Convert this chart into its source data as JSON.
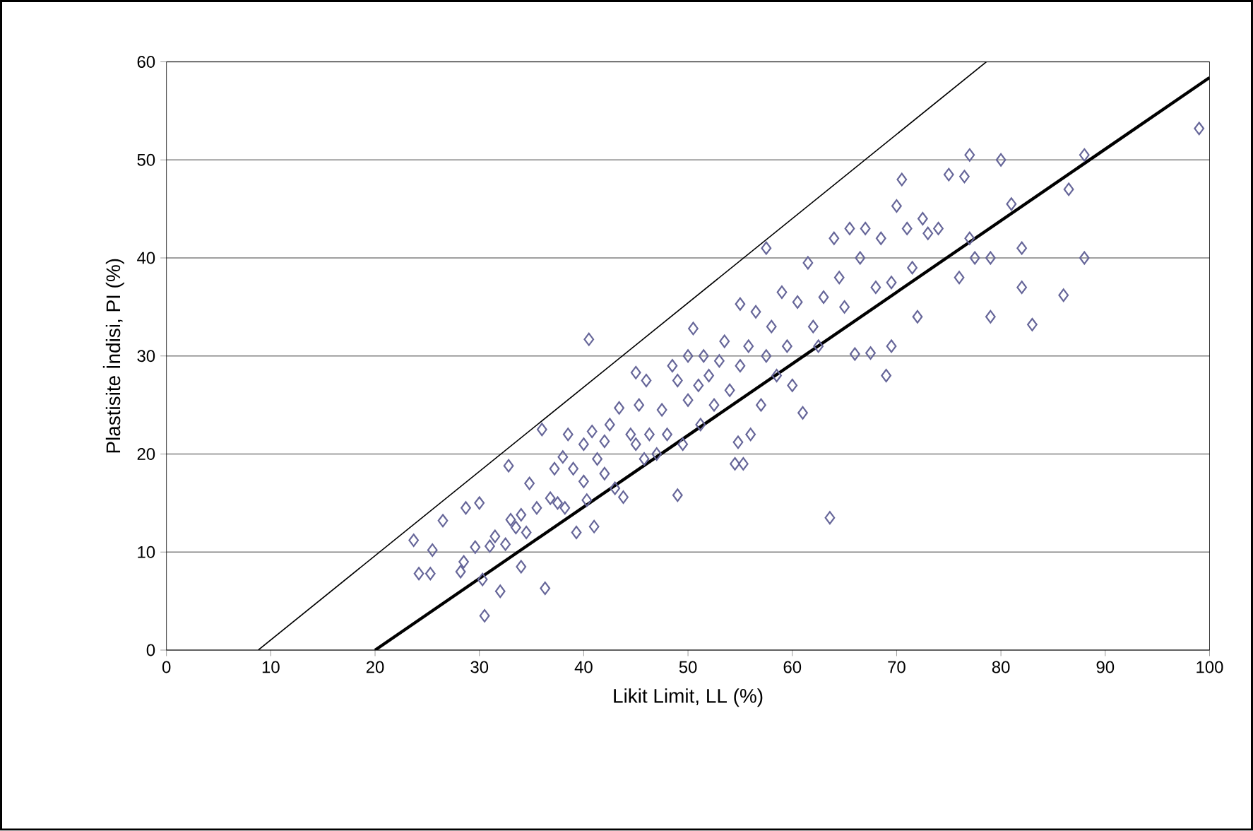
{
  "chart_data": {
    "type": "scatter",
    "xlabel": "Likit Limit, LL (%)",
    "ylabel": "Plastisite İndisi, PI (%)",
    "xlim": [
      0,
      100
    ],
    "ylim": [
      0,
      60
    ],
    "xticks": [
      0,
      10,
      20,
      30,
      40,
      50,
      60,
      70,
      80,
      90,
      100
    ],
    "yticks": [
      0,
      10,
      20,
      30,
      40,
      50,
      60
    ],
    "grid": "y",
    "marker": "diamond",
    "series": [
      {
        "color": "#666699",
        "x": [
          23.7,
          24.2,
          25.3,
          25.5,
          26.5,
          28.2,
          28.5,
          28.7,
          29.6,
          30.3,
          30,
          30.5,
          31,
          31.5,
          32,
          32.5,
          32.8,
          33,
          33.5,
          34,
          34,
          34.5,
          34.8,
          35.5,
          36,
          36.3,
          36.8,
          37.2,
          37.5,
          38,
          38.2,
          38.5,
          39,
          39.3,
          40,
          40,
          40.3,
          40.5,
          40.8,
          41,
          41.3,
          42,
          42,
          42.5,
          43,
          43.4,
          43.8,
          44.5,
          45,
          45,
          45.3,
          45.8,
          46,
          46.3,
          47,
          47.5,
          48,
          48.5,
          49,
          49,
          49.5,
          50,
          50,
          50.5,
          51,
          51.2,
          51.5,
          52,
          52.5,
          53,
          53.5,
          54,
          54.5,
          54.8,
          55,
          55,
          55.3,
          55.8,
          56,
          56.5,
          57,
          57.5,
          57.5,
          58,
          58.5,
          59,
          59.5,
          60,
          60.5,
          61,
          61.5,
          62,
          62.5,
          63,
          63.6,
          64,
          64.5,
          65,
          65.5,
          66,
          66.5,
          67,
          67.5,
          68,
          68.5,
          69,
          69.5,
          69.5,
          70,
          70.5,
          71,
          71.5,
          72,
          72.5,
          73,
          74,
          75,
          76,
          76.5,
          77,
          77,
          77.5,
          79,
          79,
          80,
          81,
          82,
          82,
          83,
          86,
          86.5,
          88,
          88,
          99
        ],
        "values": [
          11.2,
          7.8,
          7.8,
          10.2,
          13.2,
          8,
          9,
          14.5,
          10.5,
          7.2,
          15,
          3.5,
          10.6,
          11.6,
          6,
          10.8,
          18.8,
          13.3,
          12.5,
          13.8,
          8.5,
          12,
          17,
          14.5,
          22.5,
          6.3,
          15.5,
          18.5,
          15,
          19.7,
          14.5,
          22,
          18.5,
          12,
          17.2,
          21,
          15.3,
          31.7,
          22.3,
          12.6,
          19.5,
          21.3,
          18,
          23,
          16.5,
          24.7,
          15.6,
          22,
          28.3,
          21,
          25,
          19.5,
          27.5,
          22,
          20,
          24.5,
          22,
          29,
          15.8,
          27.5,
          21,
          30,
          25.5,
          32.8,
          27,
          23,
          30,
          28,
          25,
          29.5,
          31.5,
          26.5,
          19,
          21.2,
          35.3,
          29,
          19,
          31,
          22,
          34.5,
          25,
          41,
          30,
          33,
          28,
          36.5,
          31,
          27,
          35.5,
          24.2,
          39.5,
          33,
          31,
          36,
          13.5,
          42,
          38,
          35,
          43,
          30.2,
          40,
          43,
          30.3,
          37,
          42,
          28,
          31,
          37.5,
          45.3,
          48,
          43,
          39,
          34,
          44,
          42.5,
          43,
          48.5,
          38,
          48.3,
          50.5,
          42,
          40,
          34,
          40,
          50,
          45.5,
          41,
          37,
          33.2,
          36.2,
          47,
          50.5,
          40,
          53.2
        ]
      },
      {
        "type": "line",
        "color": "#000000",
        "line_style": "solid",
        "marker": "none",
        "x": [
          8.8,
          78.6
        ],
        "values": [
          0,
          60
        ]
      },
      {
        "type": "line",
        "color": "#000000",
        "line_style": "solid",
        "marker": "none",
        "x": [
          20,
          100
        ],
        "values": [
          0,
          58.4
        ]
      }
    ]
  }
}
